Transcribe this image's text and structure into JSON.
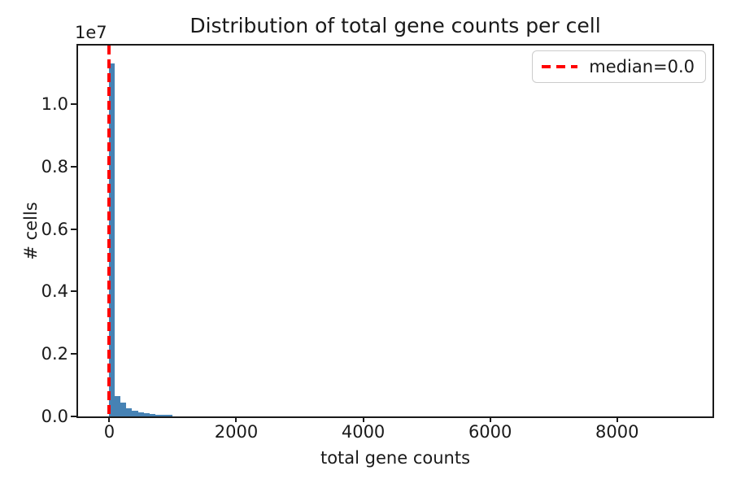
{
  "chart_data": {
    "type": "bar",
    "subtype": "histogram",
    "title": "Distribution of total gene counts per cell",
    "xlabel": "total gene counts",
    "ylabel": "# cells",
    "y_scale_offset": "1e7",
    "grid": false,
    "xlim": [
      -492,
      9502
    ],
    "ylim": [
      0,
      11875000
    ],
    "x_ticks": [
      0,
      2000,
      4000,
      6000,
      8000
    ],
    "x_tick_labels": [
      "0",
      "2000",
      "4000",
      "6000",
      "8000"
    ],
    "y_ticks": [
      0,
      2000000,
      4000000,
      6000000,
      8000000,
      10000000
    ],
    "y_tick_labels": [
      "0.0",
      "0.2",
      "0.4",
      "0.6",
      "0.8",
      "1.0"
    ],
    "bins": {
      "start": 0,
      "width": 90
    },
    "counts": [
      11300000,
      650000,
      440000,
      270000,
      185000,
      120000,
      95000,
      78000,
      64000,
      52000,
      40000
    ],
    "bar_color": "#4682b4",
    "median": 0.0,
    "median_line": {
      "x": 0,
      "color": "#ff0000",
      "style": "dashed"
    },
    "legend": {
      "position": "upper right",
      "entries": [
        {
          "label": "median=0.0",
          "color": "#ff0000",
          "style": "dashed"
        }
      ]
    },
    "axis_color": "#1a1a1a",
    "background_color": "#ffffff"
  }
}
